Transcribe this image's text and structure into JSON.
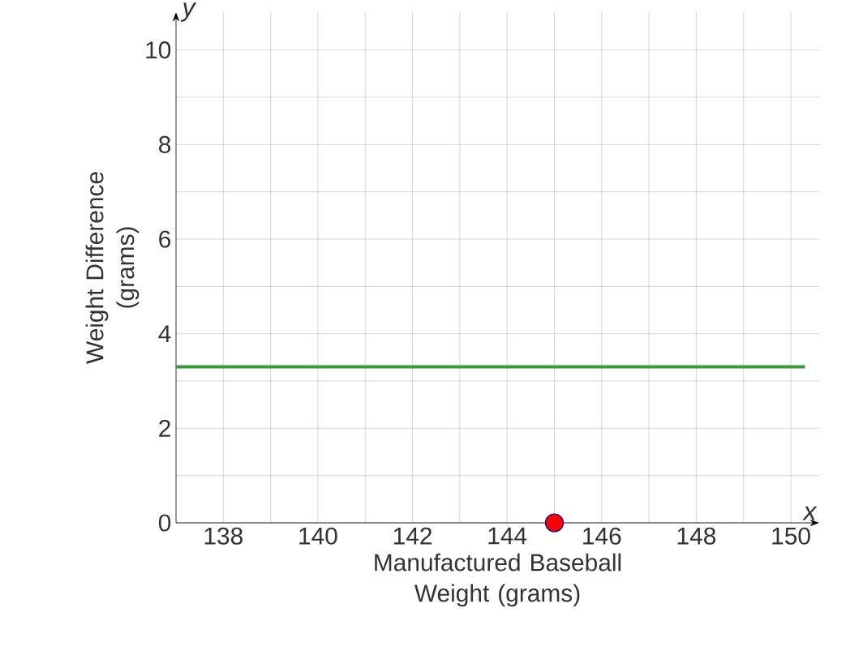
{
  "chart_data": {
    "type": "line",
    "xlabel": "Manufactured Baseball Weight (grams)",
    "ylabel": "Weight Difference (grams)",
    "annotations": [
      "x",
      "y"
    ],
    "xlim": [
      137,
      150.6
    ],
    "ylim": [
      0,
      10.8
    ],
    "xticks": [
      138,
      140,
      142,
      144,
      146,
      148,
      150
    ],
    "yticks": [
      0,
      2,
      4,
      6,
      8,
      10
    ],
    "grid": true,
    "series": [
      {
        "color": "#3a9a3a",
        "x": [
          137,
          150.3
        ],
        "values": [
          3.3,
          3.3
        ],
        "marker": "none"
      },
      {
        "type": "scatter",
        "color": "#ff0000",
        "x": [
          145
        ],
        "values": [
          0
        ],
        "marker": "circle"
      }
    ]
  }
}
